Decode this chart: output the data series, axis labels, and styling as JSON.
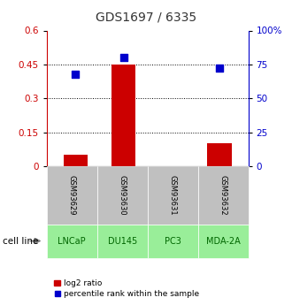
{
  "title": "GDS1697 / 6335",
  "samples": [
    "GSM93629",
    "GSM93630",
    "GSM93631",
    "GSM93632"
  ],
  "cell_lines": [
    "LNCaP",
    "DU145",
    "PC3",
    "MDA-2A"
  ],
  "log2_ratio": [
    0.05,
    0.45,
    0.0,
    0.1
  ],
  "percentile_rank": [
    68,
    80,
    null,
    72
  ],
  "left_ylim": [
    0,
    0.6
  ],
  "left_yticks": [
    0,
    0.15,
    0.3,
    0.45,
    0.6
  ],
  "left_yticklabels": [
    "0",
    "0.15",
    "0.3",
    "0.45",
    "0.6"
  ],
  "right_ylim": [
    0,
    100
  ],
  "right_yticks": [
    0,
    25,
    50,
    75,
    100
  ],
  "right_yticklabels": [
    "0",
    "25",
    "50",
    "75",
    "100%"
  ],
  "bar_color": "#cc0000",
  "dot_color": "#0000cc",
  "gsm_bg_color": "#c0c0c0",
  "cell_line_bg_color": "#99ee99",
  "cell_line_label_color": "#006600",
  "title_color": "#333333",
  "left_axis_color": "#cc0000",
  "right_axis_color": "#0000cc",
  "bar_width": 0.5,
  "dot_size": 40,
  "legend_red_label": "log2 ratio",
  "legend_blue_label": "percentile rank within the sample",
  "gridlines_at": [
    0.15,
    0.3,
    0.45
  ]
}
